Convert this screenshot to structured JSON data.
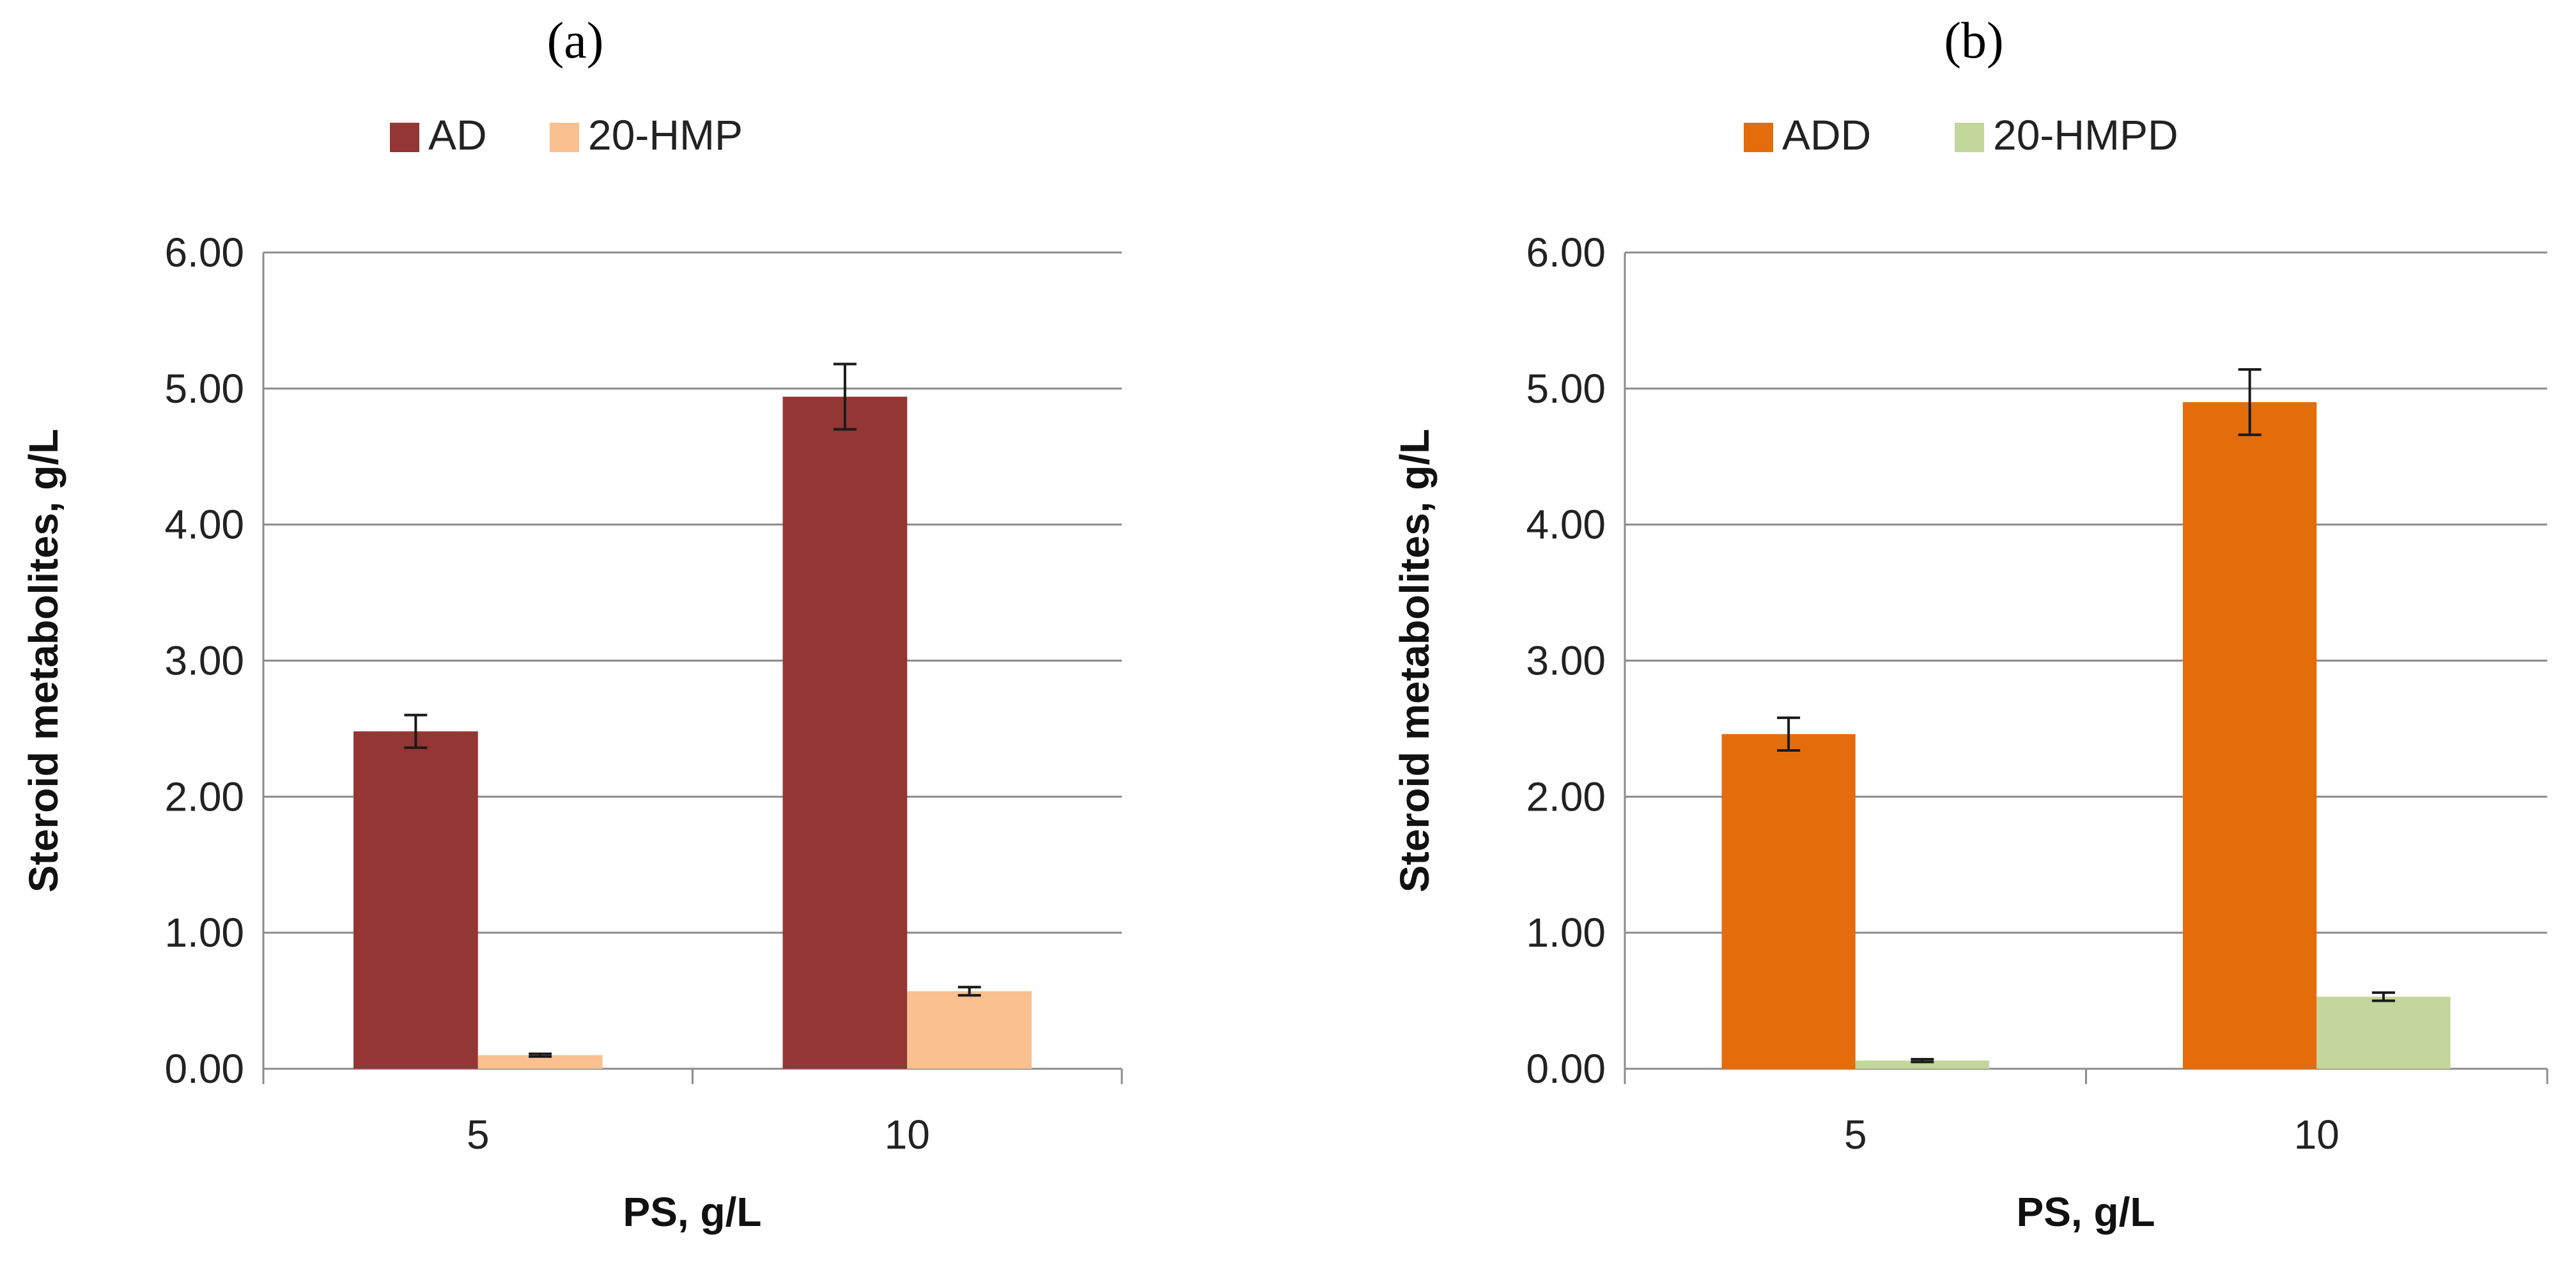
{
  "chart_data": [
    {
      "type": "bar",
      "panel_label": "(a)",
      "categories": [
        "5",
        "10"
      ],
      "series": [
        {
          "name": "AD",
          "values": [
            2.48,
            4.94
          ],
          "errors": [
            0.12,
            0.24
          ],
          "color": "#943634"
        },
        {
          "name": "20-HMP",
          "values": [
            0.1,
            0.57
          ],
          "errors": [
            0.01,
            0.03
          ],
          "color": "#FAC090"
        }
      ],
      "xlabel": "PS, g/L",
      "ylabel": "Steroid metabolites, g/L",
      "ylim": [
        0,
        6
      ],
      "yticks": [
        "0.00",
        "1.00",
        "2.00",
        "3.00",
        "4.00",
        "5.00",
        "6.00"
      ],
      "grid": true,
      "legend_position": "top"
    },
    {
      "type": "bar",
      "panel_label": "(b)",
      "categories": [
        "5",
        "10"
      ],
      "series": [
        {
          "name": "ADD",
          "values": [
            2.46,
            4.9
          ],
          "errors": [
            0.12,
            0.24
          ],
          "color": "#E46C0A"
        },
        {
          "name": "20-HMPD",
          "values": [
            0.06,
            0.53
          ],
          "errors": [
            0.01,
            0.03
          ],
          "color": "#C3D69B"
        }
      ],
      "xlabel": "PS, g/L",
      "ylabel": "Steroid metabolites, g/L",
      "ylim": [
        0,
        6
      ],
      "yticks": [
        "0.00",
        "1.00",
        "2.00",
        "3.00",
        "4.00",
        "5.00",
        "6.00"
      ],
      "grid": true,
      "legend_position": "top"
    }
  ]
}
